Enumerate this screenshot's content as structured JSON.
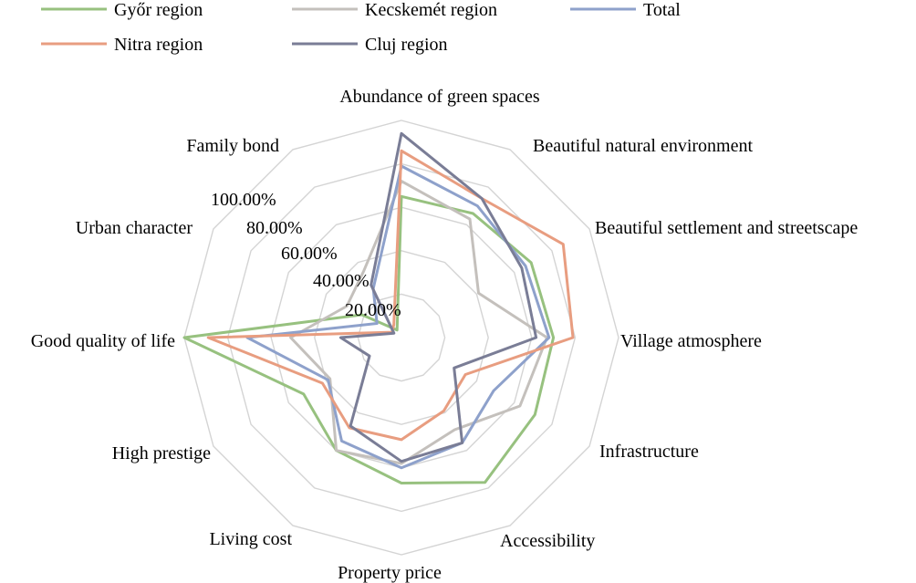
{
  "chart_data": {
    "type": "radar",
    "categories": [
      "Abundance of green spaces",
      "Beautiful natural environment",
      "Beautiful settlement and streetscape",
      "Village atmosphere",
      "Infrastructure",
      "Accessibility",
      "Property price",
      "Living cost",
      "High prestige",
      "Good quality of life",
      "Urban character",
      "Family bond"
    ],
    "series": [
      {
        "name": "Győr region",
        "color": "#97c17f",
        "values": [
          65,
          66,
          69,
          70,
          71,
          77,
          67,
          60,
          52,
          100,
          21,
          4
        ]
      },
      {
        "name": "Kecskemét region",
        "color": "#c4c0bc",
        "values": [
          72,
          63,
          41,
          67,
          63,
          49,
          58,
          60,
          38,
          51,
          29,
          35
        ]
      },
      {
        "name": "Total",
        "color": "#8ea1cb",
        "values": [
          79,
          70,
          66,
          68,
          49,
          56,
          60,
          55,
          39,
          71,
          13,
          26
        ]
      },
      {
        "name": "Nitra region",
        "color": "#e89d80",
        "values": [
          86,
          74,
          86,
          79,
          34,
          39,
          47,
          48,
          42,
          89,
          5,
          7
        ]
      },
      {
        "name": "Cluj region",
        "color": "#7a7d96",
        "values": [
          94,
          74,
          64,
          62,
          28,
          56,
          57,
          47,
          17,
          28,
          4,
          28
        ]
      }
    ],
    "radial_ticks": [
      "20.00%",
      "40.00%",
      "60.00%",
      "80.00%",
      "100.00%"
    ],
    "rlim": [
      0,
      100
    ],
    "legend_position": "top"
  }
}
